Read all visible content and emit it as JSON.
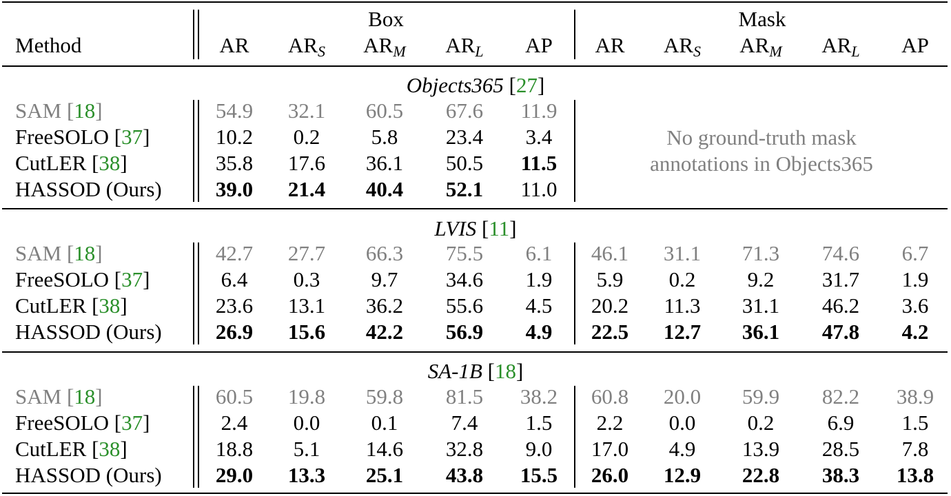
{
  "header": {
    "method": "Method",
    "groups": [
      "Box",
      "Mask"
    ],
    "cols": [
      {
        "base": "AR",
        "sub": ""
      },
      {
        "base": "AR",
        "sub": "S"
      },
      {
        "base": "AR",
        "sub": "M"
      },
      {
        "base": "AR",
        "sub": "L"
      },
      {
        "base": "AP",
        "sub": ""
      }
    ]
  },
  "sections": [
    {
      "dataset": "Objects365",
      "ref": "27",
      "mask_note": [
        "No ground-truth mask",
        "annotations in Objects365"
      ],
      "rows": [
        {
          "name": "SAM",
          "ref": "18",
          "gray": true,
          "box": [
            "54.9",
            "32.1",
            "60.5",
            "67.6",
            "11.9"
          ],
          "mask": []
        },
        {
          "name": "FreeSOLO",
          "ref": "37",
          "box": [
            "10.2",
            "0.2",
            "5.8",
            "23.4",
            "3.4"
          ],
          "mask": []
        },
        {
          "name": "CutLER",
          "ref": "38",
          "box": [
            "35.8",
            "17.6",
            "36.1",
            "50.5",
            "11.5"
          ],
          "mask": [],
          "box_bold": [
            4
          ]
        },
        {
          "name": "HASSOD (Ours)",
          "ref": "",
          "box": [
            "39.0",
            "21.4",
            "40.4",
            "52.1",
            "11.0"
          ],
          "mask": [],
          "box_bold": [
            0,
            1,
            2,
            3
          ]
        }
      ]
    },
    {
      "dataset": "LVIS",
      "ref": "11",
      "rows": [
        {
          "name": "SAM",
          "ref": "18",
          "gray": true,
          "box": [
            "42.7",
            "27.7",
            "66.3",
            "75.5",
            "6.1"
          ],
          "mask": [
            "46.1",
            "31.1",
            "71.3",
            "74.6",
            "6.7"
          ]
        },
        {
          "name": "FreeSOLO",
          "ref": "37",
          "box": [
            "6.4",
            "0.3",
            "9.7",
            "34.6",
            "1.9"
          ],
          "mask": [
            "5.9",
            "0.2",
            "9.2",
            "31.7",
            "1.9"
          ]
        },
        {
          "name": "CutLER",
          "ref": "38",
          "box": [
            "23.6",
            "13.1",
            "36.2",
            "55.6",
            "4.5"
          ],
          "mask": [
            "20.2",
            "11.3",
            "31.1",
            "46.2",
            "3.6"
          ]
        },
        {
          "name": "HASSOD (Ours)",
          "ref": "",
          "box": [
            "26.9",
            "15.6",
            "42.2",
            "56.9",
            "4.9"
          ],
          "mask": [
            "22.5",
            "12.7",
            "36.1",
            "47.8",
            "4.2"
          ],
          "box_bold": [
            0,
            1,
            2,
            3,
            4
          ],
          "mask_bold": [
            0,
            1,
            2,
            3,
            4
          ]
        }
      ]
    },
    {
      "dataset": "SA-1B",
      "ref": "18",
      "rows": [
        {
          "name": "SAM",
          "ref": "18",
          "gray": true,
          "box": [
            "60.5",
            "19.8",
            "59.8",
            "81.5",
            "38.2"
          ],
          "mask": [
            "60.8",
            "20.0",
            "59.9",
            "82.2",
            "38.9"
          ]
        },
        {
          "name": "FreeSOLO",
          "ref": "37",
          "box": [
            "2.4",
            "0.0",
            "0.1",
            "7.4",
            "1.5"
          ],
          "mask": [
            "2.2",
            "0.0",
            "0.2",
            "6.9",
            "1.5"
          ]
        },
        {
          "name": "CutLER",
          "ref": "38",
          "box": [
            "18.8",
            "5.1",
            "14.6",
            "32.8",
            "9.0"
          ],
          "mask": [
            "17.0",
            "4.9",
            "13.9",
            "28.5",
            "7.8"
          ]
        },
        {
          "name": "HASSOD (Ours)",
          "ref": "",
          "box": [
            "29.0",
            "13.3",
            "25.1",
            "43.8",
            "15.5"
          ],
          "mask": [
            "26.0",
            "12.9",
            "22.8",
            "38.3",
            "13.8"
          ],
          "box_bold": [
            0,
            1,
            2,
            3,
            4
          ],
          "mask_bold": [
            0,
            1,
            2,
            3,
            4
          ]
        }
      ]
    }
  ],
  "colors": {
    "text": "#000000",
    "baseline": "#808080",
    "citation": "#2a8f2a"
  }
}
